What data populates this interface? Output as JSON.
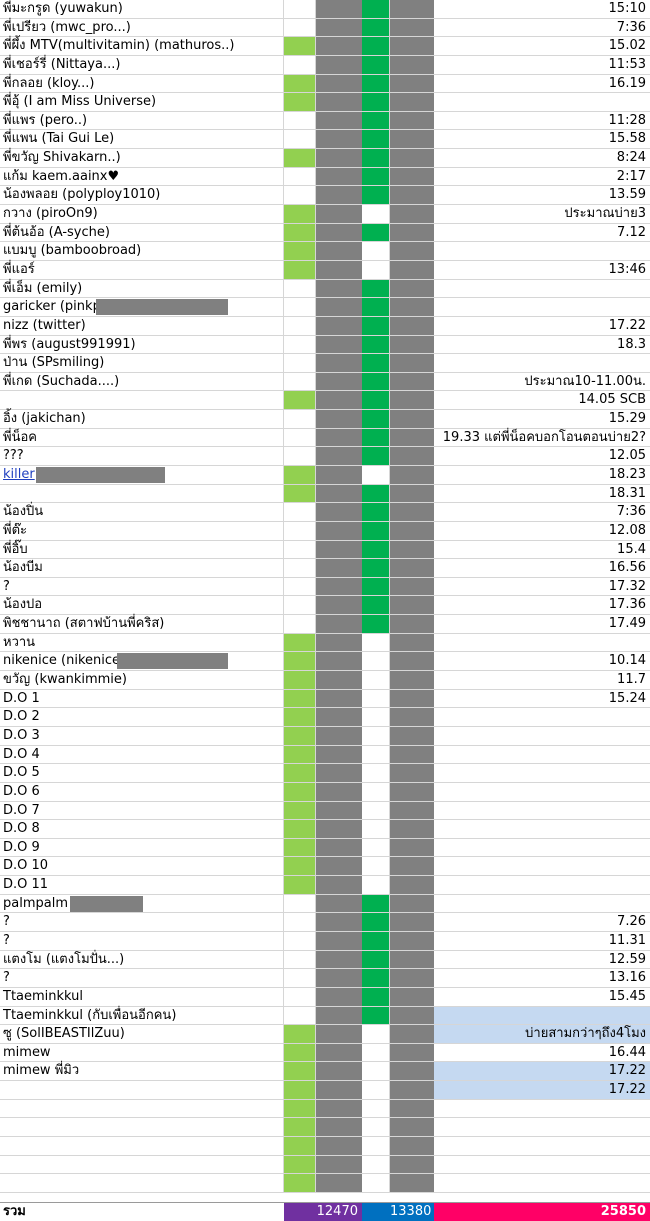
{
  "sheet": {
    "colors": {
      "light_green": "#92d050",
      "dark_green": "#00b050",
      "gray": "#808080",
      "light_blue": "#c5d9f1",
      "purple": "#7030a0",
      "blue": "#0070c0",
      "pink": "#ff0066",
      "link": "#1f3fbf"
    },
    "rows": [
      {
        "name": "พี่มะกรูด (yuwakun)",
        "flag": "",
        "g2": "dark",
        "note": "15:10",
        "note_bg": ""
      },
      {
        "name": "พี่เปรียว (mwc_pro...)",
        "flag": "",
        "g2": "dark",
        "note": "7:36",
        "note_bg": ""
      },
      {
        "name": "พี่ผึ้ง MTV(multivitamin) (mathuros..)",
        "flag": "light",
        "g2": "dark",
        "note": "15.02",
        "note_bg": ""
      },
      {
        "name": "พี่เชอร์รี่ (Nittaya...)",
        "flag": "",
        "g2": "dark",
        "note": "11:53",
        "note_bg": ""
      },
      {
        "name": "พี่กลอย (kloy...)",
        "flag": "light",
        "g2": "dark",
        "note": "16.19",
        "note_bg": ""
      },
      {
        "name": "พี่อุ้ (I am Miss Universe)",
        "flag": "light",
        "g2": "dark",
        "note": "",
        "note_bg": ""
      },
      {
        "name": "พี่แพร (pero..)",
        "flag": "",
        "g2": "dark",
        "note": "11:28",
        "note_bg": ""
      },
      {
        "name": "พี่แพน (Tai Gui Le)",
        "flag": "",
        "g2": "dark",
        "note": "15.58",
        "note_bg": ""
      },
      {
        "name": "พี่ขวัญ Shivakarn..)",
        "flag": "light",
        "g2": "dark",
        "note": "8:24",
        "note_bg": ""
      },
      {
        "name": "แก้ม  kaem.aainx♥",
        "flag": "",
        "g2": "dark",
        "note": "2:17",
        "note_bg": ""
      },
      {
        "name": "น้องพลอย (polyploy1010)",
        "flag": "",
        "g2": "dark",
        "note": "13.59",
        "note_bg": ""
      },
      {
        "name": "กวาง (piroOn9)",
        "flag": "light",
        "g2": "",
        "note": "ประมาณบ่าย3",
        "note_bg": ""
      },
      {
        "name": "พี่ต้นอ้อ (A-syche)",
        "flag": "light",
        "g2": "dark",
        "note": "7.12",
        "note_bg": ""
      },
      {
        "name": "แบมบู (bamboobroad)",
        "flag": "light",
        "g2": "",
        "note": "",
        "note_bg": ""
      },
      {
        "name": "พี่แอร์",
        "flag": "light",
        "g2": "",
        "note": "13:46",
        "note_bg": ""
      },
      {
        "name": "พี่เอ็ม (emily)",
        "flag": "",
        "g2": "dark",
        "note": "",
        "note_bg": ""
      },
      {
        "name": "garicker (pinkpa",
        "flag": "",
        "g2": "dark",
        "note": "",
        "note_bg": "",
        "redact": [
          96,
          228
        ]
      },
      {
        "name": "nizz (twitter)",
        "flag": "",
        "g2": "dark",
        "note": "17.22",
        "note_bg": ""
      },
      {
        "name": "พี่พร (august991991)",
        "flag": "",
        "g2": "dark",
        "note": "18.3",
        "note_bg": ""
      },
      {
        "name": "ป่าน (SPsmiling)",
        "flag": "",
        "g2": "dark",
        "note": "",
        "note_bg": ""
      },
      {
        "name": "พี่เกด (Suchada....)",
        "flag": "",
        "g2": "dark",
        "note": "ประมาณ10-11.00น.",
        "note_bg": ""
      },
      {
        "name": "",
        "flag": "light",
        "g2": "dark",
        "note": "14.05 SCB",
        "note_bg": ""
      },
      {
        "name": "อิ้ง (jakichan)",
        "flag": "",
        "g2": "dark",
        "note": "15.29",
        "note_bg": ""
      },
      {
        "name": "พี่น็อค",
        "flag": "",
        "g2": "dark",
        "note": "19.33 แต่พี่น็อคบอกโอนตอนบ่าย2?",
        "note_bg": ""
      },
      {
        "name": "???",
        "flag": "",
        "g2": "dark",
        "note": "12.05",
        "note_bg": ""
      },
      {
        "name": "killer",
        "flag": "light",
        "g2": "",
        "note": "18.23",
        "note_bg": "",
        "link": true,
        "redact": [
          36,
          165
        ]
      },
      {
        "name": "",
        "flag": "light",
        "g2": "dark",
        "note": "18.31",
        "note_bg": ""
      },
      {
        "name": "น้องปิ่น",
        "flag": "",
        "g2": "dark",
        "note": "7:36",
        "note_bg": ""
      },
      {
        "name": "พี่ต๊ะ",
        "flag": "",
        "g2": "dark",
        "note": "12.08",
        "note_bg": ""
      },
      {
        "name": "พี่อิ๊บ",
        "flag": "",
        "g2": "dark",
        "note": "15.4",
        "note_bg": ""
      },
      {
        "name": "น้องบีม",
        "flag": "",
        "g2": "dark",
        "note": "16.56",
        "note_bg": ""
      },
      {
        "name": "?",
        "flag": "",
        "g2": "dark",
        "note": "17.32",
        "note_bg": ""
      },
      {
        "name": "น้องปอ",
        "flag": "",
        "g2": "dark",
        "note": "17.36",
        "note_bg": ""
      },
      {
        "name": "พิชชานาถ (สตาฟบ้านพี่คริส)",
        "flag": "",
        "g2": "dark",
        "note": "17.49",
        "note_bg": ""
      },
      {
        "name": "หวาน",
        "flag": "light",
        "g2": "",
        "note": "",
        "note_bg": ""
      },
      {
        "name": "nikenice (nikenice",
        "flag": "light",
        "g2": "",
        "note": "10.14",
        "note_bg": "",
        "redact": [
          117,
          228
        ]
      },
      {
        "name": " ขวัญ (kwankimmie)",
        "flag": "light",
        "g2": "",
        "note": "11.7",
        "note_bg": ""
      },
      {
        "name": "D.O 1",
        "flag": "light",
        "g2": "",
        "note": "15.24",
        "note_bg": ""
      },
      {
        "name": "D.O 2",
        "flag": "light",
        "g2": "",
        "note": "",
        "note_bg": ""
      },
      {
        "name": "D.O 3",
        "flag": "light",
        "g2": "",
        "note": "",
        "note_bg": ""
      },
      {
        "name": "D.O 4",
        "flag": "light",
        "g2": "",
        "note": "",
        "note_bg": ""
      },
      {
        "name": "D.O 5",
        "flag": "light",
        "g2": "",
        "note": "",
        "note_bg": ""
      },
      {
        "name": "D.O 6",
        "flag": "light",
        "g2": "",
        "note": "",
        "note_bg": ""
      },
      {
        "name": "D.O 7",
        "flag": "light",
        "g2": "",
        "note": "",
        "note_bg": ""
      },
      {
        "name": "D.O 8",
        "flag": "light",
        "g2": "",
        "note": "",
        "note_bg": ""
      },
      {
        "name": "D.O 9",
        "flag": "light",
        "g2": "",
        "note": "",
        "note_bg": ""
      },
      {
        "name": "D.O 10",
        "flag": "light",
        "g2": "",
        "note": "",
        "note_bg": ""
      },
      {
        "name": "D.O 11",
        "flag": "light",
        "g2": "",
        "note": "",
        "note_bg": ""
      },
      {
        "name": "palmpalm",
        "flag": "",
        "g2": "dark",
        "note": "",
        "note_bg": "",
        "redact": [
          70,
          143
        ]
      },
      {
        "name": "?",
        "flag": "",
        "g2": "dark",
        "note": "7.26",
        "note_bg": ""
      },
      {
        "name": "?",
        "flag": "",
        "g2": "dark",
        "note": "11.31",
        "note_bg": ""
      },
      {
        "name": "แตงโม (แตงโมปั่น...)",
        "flag": "",
        "g2": "dark",
        "note": "12.59",
        "note_bg": ""
      },
      {
        "name": "?",
        "flag": "",
        "g2": "dark",
        "note": "13.16",
        "note_bg": ""
      },
      {
        "name": "Ttaeminkkul",
        "flag": "",
        "g2": "dark",
        "note": "15.45",
        "note_bg": ""
      },
      {
        "name": "Ttaeminkkul (กับเพื่อนอีกคน)",
        "flag": "",
        "g2": "dark",
        "note": "",
        "note_bg": "blue"
      },
      {
        "name": "ซู (SolIBEASTIlZuu)",
        "flag": "light",
        "g2": "",
        "note": "บ่ายสามกว่าๆถึง4โมง",
        "note_bg": "blue"
      },
      {
        "name": "mimew",
        "flag": "light",
        "g2": "",
        "note": "16.44",
        "note_bg": ""
      },
      {
        "name": "mimew พี่มิว",
        "flag": "light",
        "g2": "",
        "note": "17.22",
        "note_bg": "blue"
      },
      {
        "name": "",
        "flag": "light",
        "g2": "",
        "note": "17.22",
        "note_bg": "blue"
      },
      {
        "name": "",
        "flag": "light",
        "g2": "",
        "note": "",
        "note_bg": ""
      },
      {
        "name": "",
        "flag": "light",
        "g2": "",
        "note": "",
        "note_bg": ""
      },
      {
        "name": "",
        "flag": "light",
        "g2": "",
        "note": "",
        "note_bg": ""
      },
      {
        "name": "",
        "flag": "light",
        "g2": "",
        "note": "",
        "note_bg": ""
      },
      {
        "name": "",
        "flag": "light",
        "g2": "",
        "note": "",
        "note_bg": ""
      }
    ],
    "totals": {
      "label": "รวม",
      "g1": "12470",
      "g3": "13380",
      "sum": "25850"
    }
  }
}
